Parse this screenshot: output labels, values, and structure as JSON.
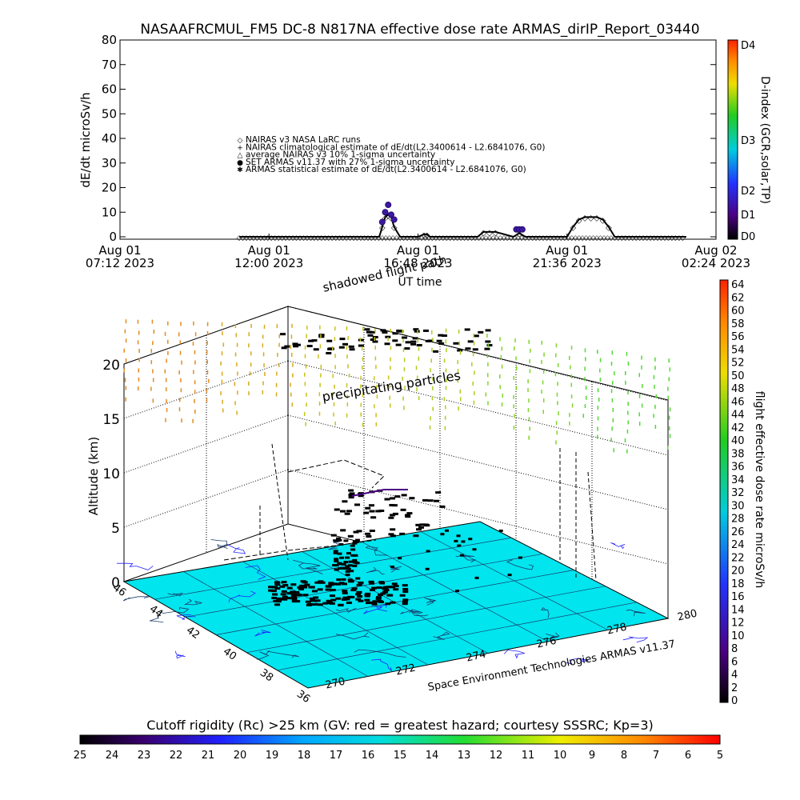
{
  "header": {
    "title": "NASAAFRCMUL_FM5 DC-8    N817NA effective dose rate ARMAS_dirIP_Report_03440"
  },
  "chart_data": [
    {
      "type": "line",
      "ylabel": "dE/dt microSv/h",
      "xlabel": "UT time",
      "ylim": [
        0,
        80
      ],
      "y_ticks": [
        "0",
        "10",
        "20",
        "30",
        "40",
        "50",
        "60",
        "70",
        "80"
      ],
      "x_ticks": [
        {
          "day": "Aug 01",
          "time": "07:12 2023"
        },
        {
          "day": "Aug 01",
          "time": "12:00 2023"
        },
        {
          "day": "Aug 01",
          "time": "16:48 2023"
        },
        {
          "day": "Aug 01",
          "time": "21:36 2023"
        },
        {
          "day": "Aug 02",
          "time": "02:24 2023"
        }
      ],
      "legend": [
        {
          "symbol": "diamond",
          "label": "NAIRAS v3 NASA LaRC runs"
        },
        {
          "symbol": "plus",
          "label": "NAIRAS climatological estimate of dE/dt(L2.3400614 - L2.6841076, G0)"
        },
        {
          "symbol": "triangle",
          "label": "average NAIRAS v3 10% 1-sigma uncertainty"
        },
        {
          "symbol": "dot",
          "label": "SET ARMAS v11.37 with 27% 1-sigma uncertainty"
        },
        {
          "symbol": "star",
          "label": "ARMAS statistical estimate of dE/dt(L2.3400614 - L2.6841076, G0)"
        }
      ],
      "series": [
        {
          "name": "ARMAS statistical estimate of dE/dt(L2.3400614 - L2.6841076, G0)",
          "x": [
            0.2,
            0.4,
            0.435,
            0.44,
            0.445,
            0.45,
            0.455,
            0.46,
            0.47,
            0.5,
            0.51,
            0.515,
            0.52,
            0.6,
            0.61,
            0.62,
            0.63,
            0.66,
            0.67,
            0.68,
            0.75,
            0.76,
            0.77,
            0.78,
            0.79,
            0.8,
            0.81,
            0.82,
            0.83,
            0.84,
            0.85,
            0.95
          ],
          "y": [
            0,
            0,
            0,
            4,
            8,
            9,
            8,
            4,
            0,
            0,
            1,
            1,
            0,
            0,
            2,
            2,
            2,
            0,
            1.5,
            0,
            0,
            4,
            7,
            8,
            8,
            8,
            7,
            4,
            0,
            0,
            0,
            0
          ]
        },
        {
          "name": "SET ARMAS v11.37 with 27% 1-sigma uncertainty",
          "x": [
            0.44,
            0.445,
            0.45,
            0.455,
            0.46,
            0.665,
            0.67,
            0.675
          ],
          "y": [
            6,
            10,
            13,
            9,
            7,
            3,
            3,
            3
          ]
        }
      ],
      "dindex_scale": {
        "label": "D-index (GCR,solar,TP)",
        "ticks": [
          "D0",
          "D1",
          "D2",
          "D3",
          "D4"
        ],
        "colors": [
          "#000000",
          "#4b0082",
          "#2233ff",
          "#00ccdd",
          "#22cc22",
          "#eedd00",
          "#ff8800",
          "#ff2200"
        ]
      }
    },
    {
      "type": "scatter",
      "ylabel": "Altitude (km)",
      "xlabel": "Space Environment Technologies ARMAS v11.37",
      "z_ticks": [
        "0",
        "5",
        "10",
        "15",
        "20"
      ],
      "lat_ticks": [
        "46",
        "44",
        "42",
        "40",
        "38",
        "36"
      ],
      "lon_ticks": [
        "270",
        "272",
        "274",
        "276",
        "278",
        "280"
      ],
      "annotations": [
        "shadowed flight path",
        "precipitating particles"
      ],
      "dose_scale": {
        "label": "flight effective dose rate microSv/h",
        "ticks": [
          "0",
          "2",
          "4",
          "6",
          "8",
          "10",
          "12",
          "14",
          "16",
          "18",
          "20",
          "22",
          "24",
          "26",
          "28",
          "30",
          "32",
          "34",
          "36",
          "38",
          "40",
          "42",
          "44",
          "46",
          "48",
          "50",
          "52",
          "54",
          "56",
          "58",
          "60",
          "62",
          "64"
        ]
      },
      "rigidity_scale": {
        "label": "Cutoff rigidity (Rc) >25 km (GV: red = greatest hazard; courtesy SSSRC; Kp=3)",
        "ticks": [
          "25",
          "24",
          "23",
          "22",
          "21",
          "20",
          "19",
          "18",
          "17",
          "16",
          "15",
          "14",
          "13",
          "12",
          "11",
          "10",
          "9",
          "8",
          "7",
          "6",
          "5"
        ]
      },
      "map_color": "#00e5ee"
    }
  ]
}
